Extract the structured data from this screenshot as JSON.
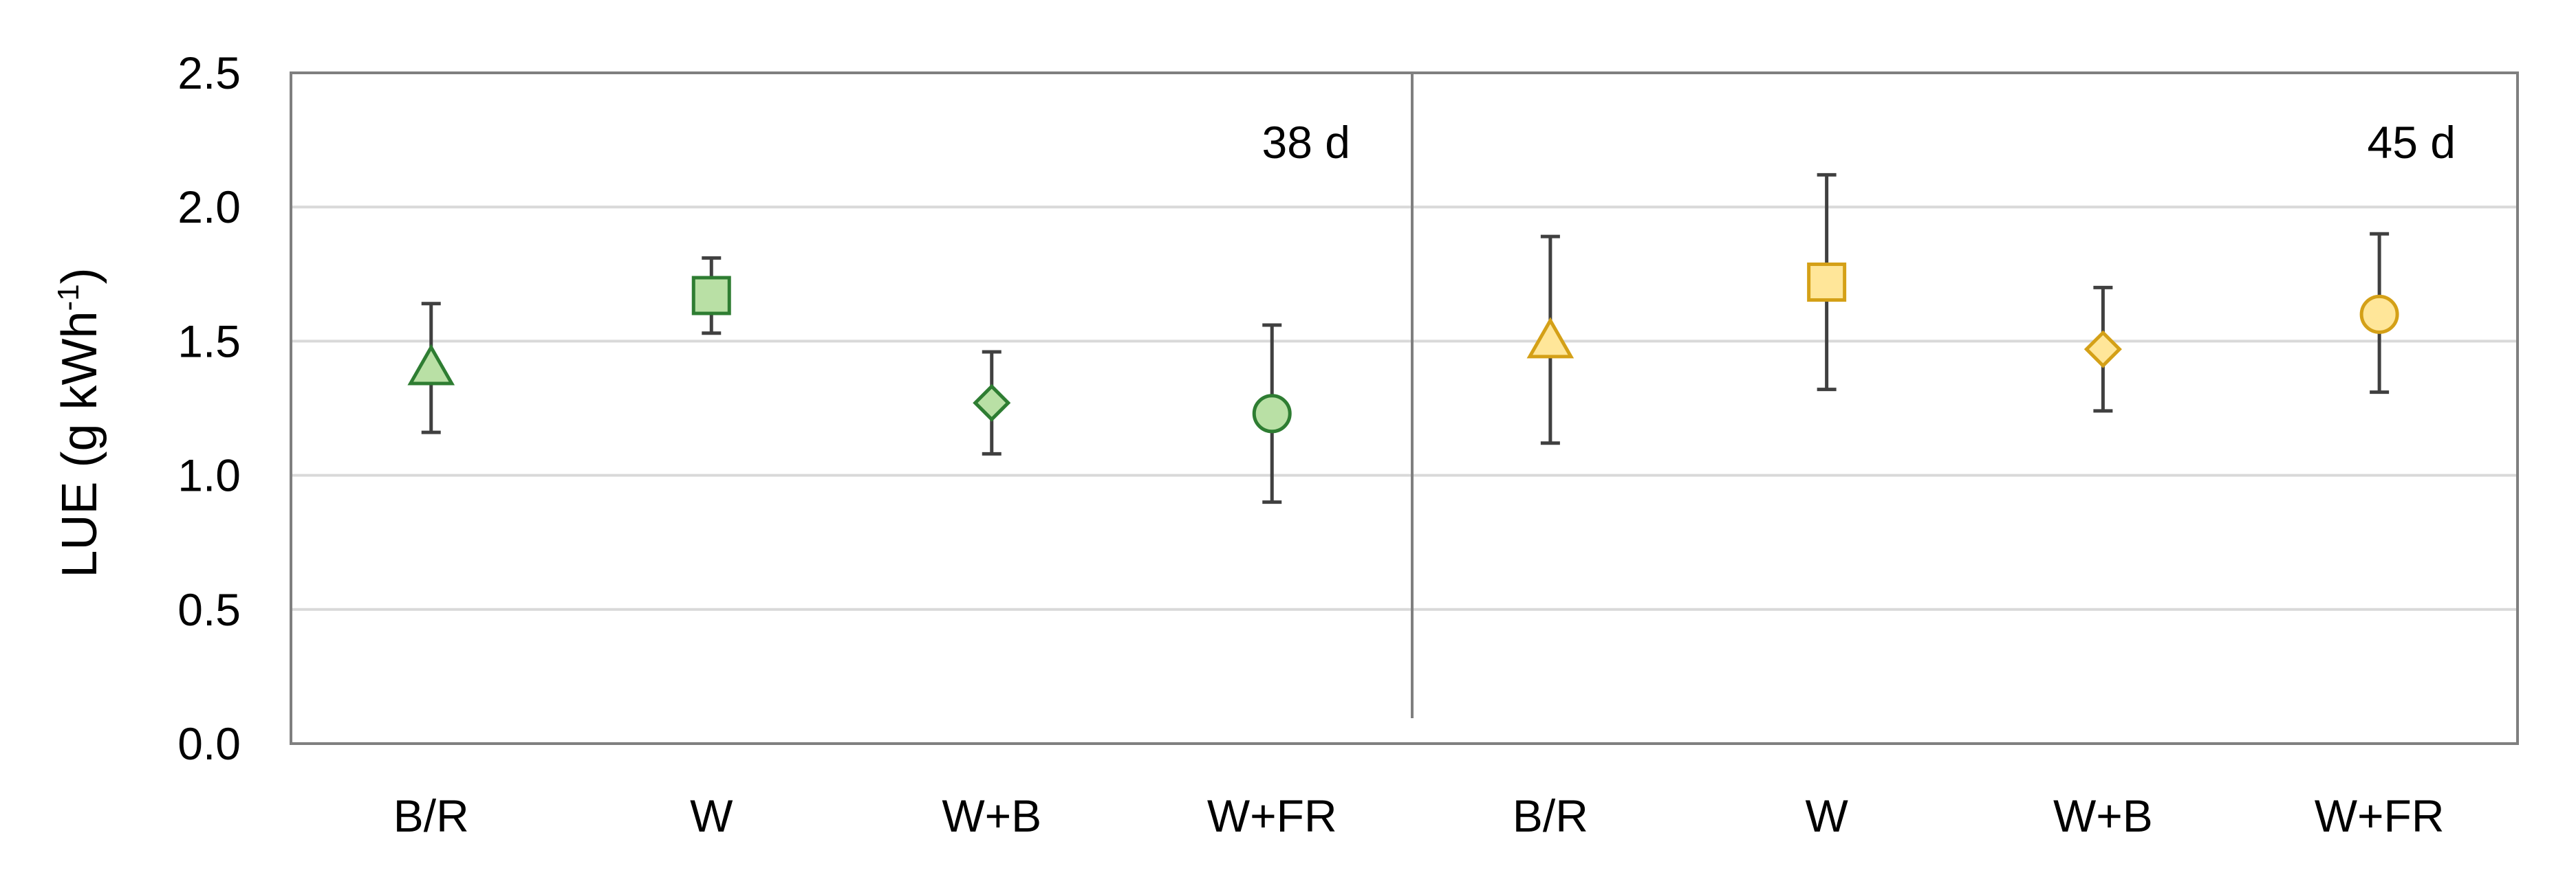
{
  "chart_data": {
    "type": "scatter",
    "ylabel": "LUE (g kWh",
    "ylabel_superscript": "-1",
    "ylabel_suffix": ")",
    "xlabel": "",
    "ylim": [
      0,
      2.5
    ],
    "yticks": [
      0.0,
      0.5,
      1.0,
      1.5,
      2.0,
      2.5
    ],
    "ytick_labels": [
      "0.0",
      "0.5",
      "1.0",
      "1.5",
      "2.0",
      "2.5"
    ],
    "grid": "horizontal",
    "panels": [
      {
        "label": "38 d",
        "categories": [
          "B/R",
          "W",
          "W+B",
          "W+FR"
        ]
      },
      {
        "label": "45 d",
        "categories": [
          "B/R",
          "W",
          "W+B",
          "W+FR"
        ]
      }
    ],
    "points": [
      {
        "panel": 0,
        "category": "B/R",
        "value": 1.4,
        "err_low": 1.16,
        "err_high": 1.64,
        "marker": "triangle"
      },
      {
        "panel": 0,
        "category": "W",
        "value": 1.67,
        "err_low": 1.53,
        "err_high": 1.81,
        "marker": "square"
      },
      {
        "panel": 0,
        "category": "W+B",
        "value": 1.27,
        "err_low": 1.08,
        "err_high": 1.46,
        "marker": "diamond"
      },
      {
        "panel": 0,
        "category": "W+FR",
        "value": 1.23,
        "err_low": 0.9,
        "err_high": 1.56,
        "marker": "circle"
      },
      {
        "panel": 1,
        "category": "B/R",
        "value": 1.5,
        "err_low": 1.12,
        "err_high": 1.89,
        "marker": "triangle"
      },
      {
        "panel": 1,
        "category": "W",
        "value": 1.72,
        "err_low": 1.32,
        "err_high": 2.12,
        "marker": "square"
      },
      {
        "panel": 1,
        "category": "W+B",
        "value": 1.47,
        "err_low": 1.24,
        "err_high": 1.7,
        "marker": "diamond"
      },
      {
        "panel": 1,
        "category": "W+FR",
        "value": 1.6,
        "err_low": 1.31,
        "err_high": 1.9,
        "marker": "circle"
      }
    ],
    "colors": {
      "panel0_fill": "#b9e0a5",
      "panel0_stroke": "#2e7d32",
      "panel1_fill": "#ffe699",
      "panel1_stroke": "#d4a017",
      "errorbar": "#404040",
      "grid": "#d9d9d9",
      "frame": "#7f7f7f"
    }
  }
}
